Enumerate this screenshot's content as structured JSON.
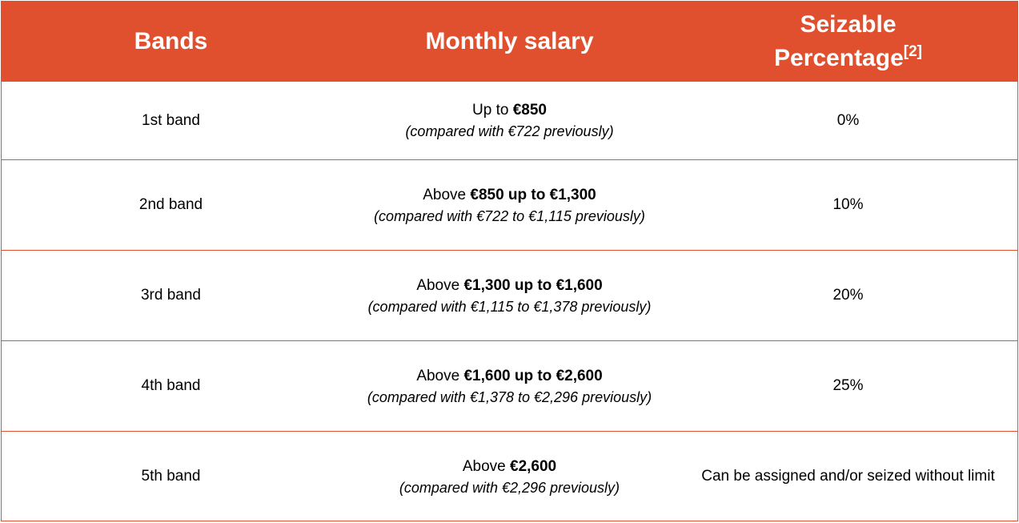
{
  "header": {
    "bands_label": "Bands",
    "salary_label": "Monthly salary",
    "pct_label_line1": "Seizable",
    "pct_label_line2": "Percentage",
    "pct_footnote": "[2]"
  },
  "rows": [
    {
      "band": "1st band",
      "salary_prefix": "Up to ",
      "salary_bold": "€850",
      "salary_note": "(compared with €722 previously)",
      "percentage": "0%"
    },
    {
      "band": "2nd band",
      "salary_prefix": "Above ",
      "salary_bold": "€850 up to €1,300",
      "salary_note": "(compared with €722 to €1,115 previously)",
      "percentage": "10%"
    },
    {
      "band": "3rd band",
      "salary_prefix": "Above ",
      "salary_bold": "€1,300 up to €1,600",
      "salary_note": "(compared with €1,115 to €1,378 previously)",
      "percentage": "20%"
    },
    {
      "band": "4th band",
      "salary_prefix": "Above ",
      "salary_bold": "€1,600 up to €2,600",
      "salary_note": "(compared with €1,378 to €2,296 previously)",
      "percentage": "25%"
    },
    {
      "band": "5th band",
      "salary_prefix": "Above ",
      "salary_bold": "€2,600",
      "salary_note": "(compared with €2,296 previously)",
      "percentage": "Can be assigned and/or seized without limit"
    }
  ],
  "colors": {
    "header_bg": "#e0502e",
    "border": "#e0522f",
    "header_text": "#ffffff"
  }
}
